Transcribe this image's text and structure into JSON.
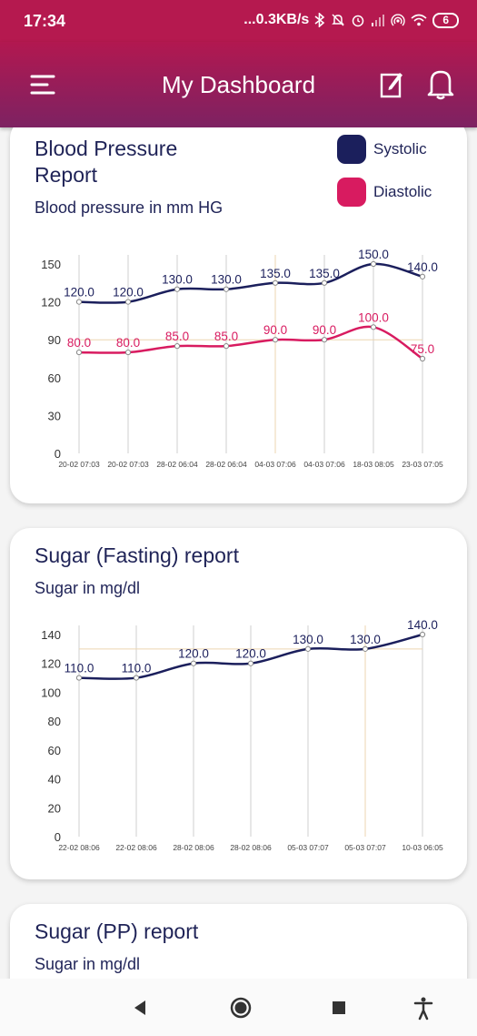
{
  "status": {
    "time": "17:34",
    "net_speed": "...0.3KB/s",
    "battery": "6"
  },
  "header": {
    "title": "My Dashboard"
  },
  "colors": {
    "systolic": "#1b1f5c",
    "diastolic": "#d81b60",
    "navy_text": "#1f2357"
  },
  "icons": [
    "menu-icon",
    "edit-icon",
    "bell-icon",
    "back-icon",
    "home-icon",
    "recents-icon",
    "accessibility-icon"
  ],
  "cards": [
    {
      "title": "Blood Pressure Report",
      "subtitle": "Blood pressure in mm HG"
    },
    {
      "title": "Sugar (Fasting) report",
      "subtitle": "Sugar in mg/dl"
    },
    {
      "title": "Sugar (PP) report",
      "subtitle": "Sugar in mg/dl"
    }
  ],
  "chart_data": [
    {
      "type": "line",
      "categories": [
        "20-02 07:03",
        "20-02 07:03",
        "28-02 06:04",
        "28-02 06:04",
        "04-03 07:06",
        "04-03 07:06",
        "18-03 08:05",
        "23-03 07:05"
      ],
      "series": [
        {
          "name": "Systolic",
          "values": [
            120.0,
            120.0,
            130.0,
            130.0,
            135.0,
            135.0,
            150.0,
            140.0
          ],
          "labels": [
            "120.0",
            "120.0",
            "130.0",
            "130.0",
            "135.0",
            "135.0",
            "150.0",
            "140.0"
          ]
        },
        {
          "name": "Diastolic",
          "values": [
            80.0,
            80.0,
            85.0,
            85.0,
            90.0,
            90.0,
            100.0,
            75.0
          ],
          "labels": [
            "80.0",
            "80.0",
            "85.0",
            "85.0",
            "90.0",
            "90.0",
            "100.0",
            "75.0"
          ]
        }
      ],
      "yticks": [
        "0",
        "30",
        "60",
        "90",
        "120",
        "150"
      ],
      "ylim": [
        0,
        150
      ],
      "grid": "vertical",
      "legend": "top-right"
    },
    {
      "type": "line",
      "categories": [
        "22-02 08:06",
        "22-02 08:06",
        "28-02 08:06",
        "28-02 08:06",
        "05-03 07:07",
        "05-03 07:07",
        "10-03 06:05"
      ],
      "series": [
        {
          "values": [
            110.0,
            110.0,
            120.0,
            120.0,
            130.0,
            130.0,
            140.0
          ],
          "labels": [
            "110.0",
            "110.0",
            "120.0",
            "120.0",
            "130.0",
            "130.0",
            "140.0"
          ]
        }
      ],
      "yticks": [
        "0",
        "20",
        "40",
        "60",
        "80",
        "100",
        "120",
        "140"
      ],
      "ylim": [
        0,
        140
      ],
      "grid": "vertical"
    }
  ]
}
